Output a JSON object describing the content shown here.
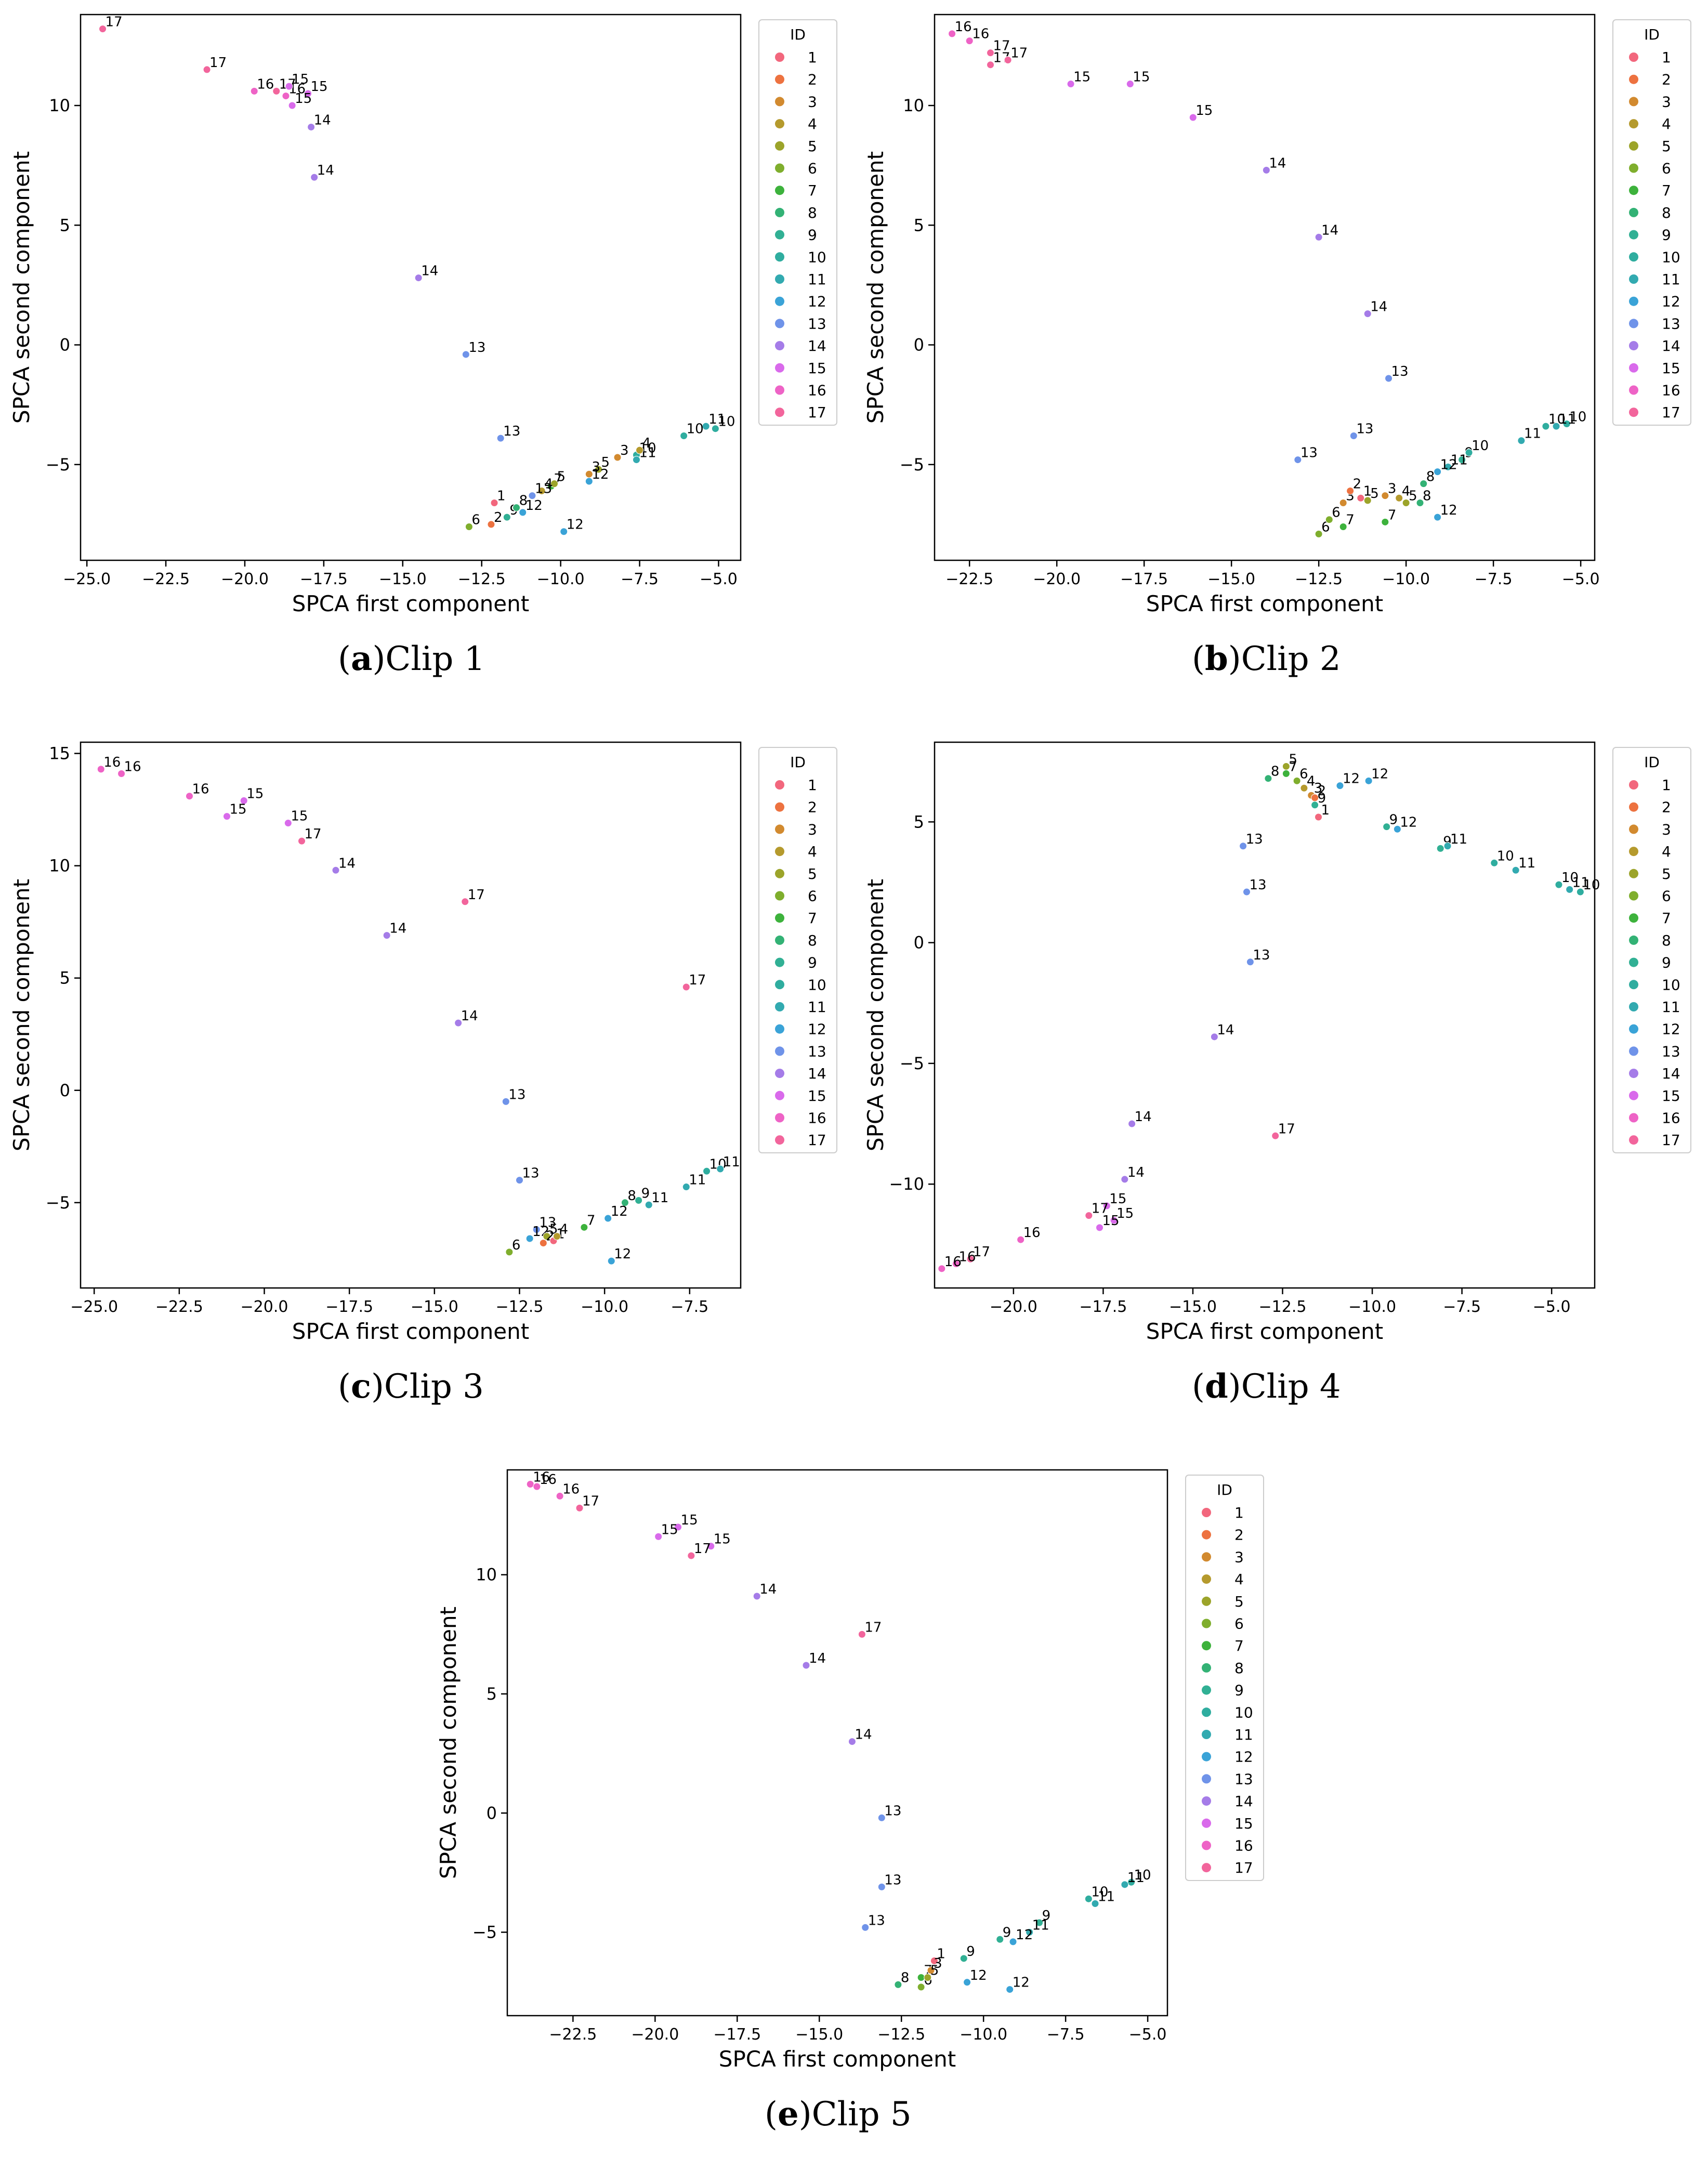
{
  "chart_data": [
    {
      "type": "scatter",
      "caption_letter": "a",
      "caption_text": "Clip 1",
      "xlabel": "SPCA first component",
      "ylabel": "SPCA second component",
      "xlim": [
        -25.2,
        -4.3
      ],
      "ylim": [
        -9.0,
        13.8
      ],
      "xticks": [
        -25.0,
        -22.5,
        -20.0,
        -17.5,
        -15.0,
        -12.5,
        -10.0,
        -7.5,
        -5.0
      ],
      "yticks": [
        -5,
        0,
        5,
        10
      ],
      "legend_title": "ID",
      "legend_ids": [
        1,
        2,
        3,
        4,
        5,
        6,
        7,
        8,
        9,
        10,
        11,
        12,
        13,
        14,
        15,
        16,
        17
      ],
      "points": [
        {
          "id": 17,
          "x": -24.5,
          "y": 13.2
        },
        {
          "id": 17,
          "x": -21.2,
          "y": 11.5
        },
        {
          "id": 17,
          "x": -19.0,
          "y": 10.6
        },
        {
          "id": 16,
          "x": -19.7,
          "y": 10.6
        },
        {
          "id": 16,
          "x": -18.7,
          "y": 10.4
        },
        {
          "id": 15,
          "x": -18.6,
          "y": 10.8
        },
        {
          "id": 15,
          "x": -18.0,
          "y": 10.5
        },
        {
          "id": 15,
          "x": -18.5,
          "y": 10.0
        },
        {
          "id": 14,
          "x": -17.9,
          "y": 9.1
        },
        {
          "id": 14,
          "x": -17.8,
          "y": 7.0
        },
        {
          "id": 14,
          "x": -14.5,
          "y": 2.8
        },
        {
          "id": 13,
          "x": -13.0,
          "y": -0.4
        },
        {
          "id": 13,
          "x": -11.9,
          "y": -3.9
        },
        {
          "id": 11,
          "x": -5.4,
          "y": -3.4
        },
        {
          "id": 10,
          "x": -5.1,
          "y": -3.5
        },
        {
          "id": 10,
          "x": -6.1,
          "y": -3.8
        },
        {
          "id": 10,
          "x": -7.6,
          "y": -4.6
        },
        {
          "id": 11,
          "x": -7.6,
          "y": -4.8
        },
        {
          "id": 4,
          "x": -7.5,
          "y": -4.4
        },
        {
          "id": 3,
          "x": -8.2,
          "y": -4.7
        },
        {
          "id": 5,
          "x": -8.8,
          "y": -5.2
        },
        {
          "id": 3,
          "x": -9.1,
          "y": -5.4
        },
        {
          "id": 12,
          "x": -9.1,
          "y": -5.7
        },
        {
          "id": 7,
          "x": -10.3,
          "y": -5.9
        },
        {
          "id": 5,
          "x": -10.2,
          "y": -5.8
        },
        {
          "id": 4,
          "x": -10.6,
          "y": -6.1
        },
        {
          "id": 13,
          "x": -10.9,
          "y": -6.3
        },
        {
          "id": 12,
          "x": -11.2,
          "y": -7.0
        },
        {
          "id": 12,
          "x": -9.9,
          "y": -7.8
        },
        {
          "id": 1,
          "x": -12.1,
          "y": -6.6
        },
        {
          "id": 2,
          "x": -12.2,
          "y": -7.5
        },
        {
          "id": 6,
          "x": -12.9,
          "y": -7.6
        },
        {
          "id": 9,
          "x": -11.7,
          "y": -7.2
        },
        {
          "id": 8,
          "x": -11.4,
          "y": -6.8
        }
      ]
    },
    {
      "type": "scatter",
      "caption_letter": "b",
      "caption_text": "Clip 2",
      "xlabel": "SPCA first component",
      "ylabel": "SPCA second component",
      "xlim": [
        -23.5,
        -4.6
      ],
      "ylim": [
        -9.0,
        13.8
      ],
      "xticks": [
        -22.5,
        -20.0,
        -17.5,
        -15.0,
        -12.5,
        -10.0,
        -7.5,
        -5.0
      ],
      "yticks": [
        -5,
        0,
        5,
        10
      ],
      "legend_title": "ID",
      "legend_ids": [
        1,
        2,
        3,
        4,
        5,
        6,
        7,
        8,
        9,
        10,
        11,
        12,
        13,
        14,
        15,
        16,
        17
      ],
      "points": [
        {
          "id": 16,
          "x": -23.0,
          "y": 13.0
        },
        {
          "id": 16,
          "x": -22.5,
          "y": 12.7
        },
        {
          "id": 17,
          "x": -21.9,
          "y": 12.2
        },
        {
          "id": 17,
          "x": -21.9,
          "y": 11.7
        },
        {
          "id": 17,
          "x": -21.4,
          "y": 11.9
        },
        {
          "id": 15,
          "x": -19.6,
          "y": 10.9
        },
        {
          "id": 15,
          "x": -17.9,
          "y": 10.9
        },
        {
          "id": 15,
          "x": -16.1,
          "y": 9.5
        },
        {
          "id": 14,
          "x": -14.0,
          "y": 7.3
        },
        {
          "id": 14,
          "x": -12.5,
          "y": 4.5
        },
        {
          "id": 14,
          "x": -11.1,
          "y": 1.3
        },
        {
          "id": 13,
          "x": -10.5,
          "y": -1.4
        },
        {
          "id": 13,
          "x": -11.5,
          "y": -3.8
        },
        {
          "id": 13,
          "x": -13.1,
          "y": -4.8
        },
        {
          "id": 11,
          "x": -6.7,
          "y": -4.0
        },
        {
          "id": 10,
          "x": -6.0,
          "y": -3.4
        },
        {
          "id": 10,
          "x": -5.4,
          "y": -3.3
        },
        {
          "id": 11,
          "x": -5.7,
          "y": -3.4
        },
        {
          "id": 9,
          "x": -8.4,
          "y": -4.8
        },
        {
          "id": 10,
          "x": -8.2,
          "y": -4.5
        },
        {
          "id": 11,
          "x": -8.8,
          "y": -5.1
        },
        {
          "id": 12,
          "x": -9.1,
          "y": -5.3
        },
        {
          "id": 8,
          "x": -9.5,
          "y": -5.8
        },
        {
          "id": 8,
          "x": -9.6,
          "y": -6.6
        },
        {
          "id": 12,
          "x": -9.1,
          "y": -7.2
        },
        {
          "id": 7,
          "x": -10.6,
          "y": -7.4
        },
        {
          "id": 7,
          "x": -11.8,
          "y": -7.6
        },
        {
          "id": 6,
          "x": -12.5,
          "y": -7.9
        },
        {
          "id": 6,
          "x": -12.2,
          "y": -7.3
        },
        {
          "id": 3,
          "x": -11.8,
          "y": -6.6
        },
        {
          "id": 2,
          "x": -11.6,
          "y": -6.1
        },
        {
          "id": 1,
          "x": -11.3,
          "y": -6.4
        },
        {
          "id": 5,
          "x": -11.1,
          "y": -6.5
        },
        {
          "id": 3,
          "x": -10.6,
          "y": -6.3
        },
        {
          "id": 4,
          "x": -10.2,
          "y": -6.4
        },
        {
          "id": 5,
          "x": -10.0,
          "y": -6.6
        }
      ]
    },
    {
      "type": "scatter",
      "caption_letter": "c",
      "caption_text": "Clip 3",
      "xlabel": "SPCA first component",
      "ylabel": "SPCA second component",
      "xlim": [
        -25.4,
        -6.0
      ],
      "ylim": [
        -8.8,
        15.5
      ],
      "xticks": [
        -25.0,
        -22.5,
        -20.0,
        -17.5,
        -15.0,
        -12.5,
        -10.0,
        -7.5
      ],
      "yticks": [
        -5,
        0,
        5,
        10,
        15
      ],
      "legend_title": "ID",
      "legend_ids": [
        1,
        2,
        3,
        4,
        5,
        6,
        7,
        8,
        9,
        10,
        11,
        12,
        13,
        14,
        15,
        16,
        17
      ],
      "points": [
        {
          "id": 16,
          "x": -24.8,
          "y": 14.3
        },
        {
          "id": 16,
          "x": -24.2,
          "y": 14.1
        },
        {
          "id": 16,
          "x": -22.2,
          "y": 13.1
        },
        {
          "id": 15,
          "x": -20.6,
          "y": 12.9
        },
        {
          "id": 15,
          "x": -21.1,
          "y": 12.2
        },
        {
          "id": 15,
          "x": -19.3,
          "y": 11.9
        },
        {
          "id": 17,
          "x": -18.9,
          "y": 11.1
        },
        {
          "id": 14,
          "x": -17.9,
          "y": 9.8
        },
        {
          "id": 17,
          "x": -14.1,
          "y": 8.4
        },
        {
          "id": 14,
          "x": -16.4,
          "y": 6.9
        },
        {
          "id": 17,
          "x": -7.6,
          "y": 4.6
        },
        {
          "id": 14,
          "x": -14.3,
          "y": 3.0
        },
        {
          "id": 13,
          "x": -12.9,
          "y": -0.5
        },
        {
          "id": 13,
          "x": -12.5,
          "y": -4.0
        },
        {
          "id": 10,
          "x": -7.0,
          "y": -3.6
        },
        {
          "id": 11,
          "x": -6.6,
          "y": -3.5
        },
        {
          "id": 11,
          "x": -7.6,
          "y": -4.3
        },
        {
          "id": 9,
          "x": -9.0,
          "y": -4.9
        },
        {
          "id": 11,
          "x": -8.7,
          "y": -5.1
        },
        {
          "id": 8,
          "x": -9.4,
          "y": -5.0
        },
        {
          "id": 12,
          "x": -9.9,
          "y": -5.7
        },
        {
          "id": 12,
          "x": -9.8,
          "y": -7.6
        },
        {
          "id": 7,
          "x": -10.6,
          "y": -6.1
        },
        {
          "id": 13,
          "x": -12.0,
          "y": -6.2
        },
        {
          "id": 12,
          "x": -12.2,
          "y": -6.6
        },
        {
          "id": 6,
          "x": -12.8,
          "y": -7.2
        },
        {
          "id": 5,
          "x": -11.7,
          "y": -6.5
        },
        {
          "id": 2,
          "x": -11.8,
          "y": -6.8
        },
        {
          "id": 1,
          "x": -11.5,
          "y": -6.7
        },
        {
          "id": 4,
          "x": -11.4,
          "y": -6.5
        }
      ]
    },
    {
      "type": "scatter",
      "caption_letter": "d",
      "caption_text": "Clip 4",
      "xlabel": "SPCA first component",
      "ylabel": "SPCA second component",
      "xlim": [
        -22.2,
        -3.8
      ],
      "ylim": [
        -14.3,
        8.3
      ],
      "xticks": [
        -22.5,
        -20.0,
        -17.5,
        -15.0,
        -12.5,
        -10.0,
        -7.5,
        -5.0
      ],
      "yticks": [
        -10,
        -5,
        0,
        5
      ],
      "legend_title": "ID",
      "legend_ids": [
        1,
        2,
        3,
        4,
        5,
        6,
        7,
        8,
        9,
        10,
        11,
        12,
        13,
        14,
        15,
        16,
        17
      ],
      "points": [
        {
          "id": 5,
          "x": -12.4,
          "y": 7.3
        },
        {
          "id": 7,
          "x": -12.4,
          "y": 7.0
        },
        {
          "id": 8,
          "x": -12.9,
          "y": 6.8
        },
        {
          "id": 6,
          "x": -12.1,
          "y": 6.7
        },
        {
          "id": 4,
          "x": -11.9,
          "y": 6.4
        },
        {
          "id": 3,
          "x": -11.7,
          "y": 6.1
        },
        {
          "id": 2,
          "x": -11.6,
          "y": 6.0
        },
        {
          "id": 1,
          "x": -11.5,
          "y": 5.2
        },
        {
          "id": 9,
          "x": -11.6,
          "y": 5.7
        },
        {
          "id": 12,
          "x": -10.1,
          "y": 6.7
        },
        {
          "id": 12,
          "x": -10.9,
          "y": 6.5
        },
        {
          "id": 9,
          "x": -9.6,
          "y": 4.8
        },
        {
          "id": 12,
          "x": -9.3,
          "y": 4.7
        },
        {
          "id": 9,
          "x": -8.1,
          "y": 3.9
        },
        {
          "id": 11,
          "x": -7.9,
          "y": 4.0
        },
        {
          "id": 10,
          "x": -6.6,
          "y": 3.3
        },
        {
          "id": 11,
          "x": -6.0,
          "y": 3.0
        },
        {
          "id": 10,
          "x": -4.8,
          "y": 2.4
        },
        {
          "id": 11,
          "x": -4.5,
          "y": 2.2
        },
        {
          "id": 10,
          "x": -4.2,
          "y": 2.1
        },
        {
          "id": 13,
          "x": -13.6,
          "y": 4.0
        },
        {
          "id": 13,
          "x": -13.5,
          "y": 2.1
        },
        {
          "id": 13,
          "x": -13.4,
          "y": -0.8
        },
        {
          "id": 14,
          "x": -14.4,
          "y": -3.9
        },
        {
          "id": 14,
          "x": -16.7,
          "y": -7.5
        },
        {
          "id": 17,
          "x": -12.7,
          "y": -8.0
        },
        {
          "id": 14,
          "x": -16.9,
          "y": -9.8
        },
        {
          "id": 15,
          "x": -17.4,
          "y": -10.9
        },
        {
          "id": 17,
          "x": -17.9,
          "y": -11.3
        },
        {
          "id": 15,
          "x": -17.2,
          "y": -11.5
        },
        {
          "id": 15,
          "x": -17.6,
          "y": -11.8
        },
        {
          "id": 16,
          "x": -19.8,
          "y": -12.3
        },
        {
          "id": 17,
          "x": -21.2,
          "y": -13.1
        },
        {
          "id": 16,
          "x": -21.6,
          "y": -13.3
        },
        {
          "id": 16,
          "x": -22.0,
          "y": -13.5
        }
      ]
    },
    {
      "type": "scatter",
      "caption_letter": "e",
      "caption_text": "Clip 5",
      "xlabel": "SPCA first component",
      "ylabel": "SPCA second component",
      "xlim": [
        -24.5,
        -4.4
      ],
      "ylim": [
        -8.5,
        14.4
      ],
      "xticks": [
        -22.5,
        -20.0,
        -17.5,
        -15.0,
        -12.5,
        -10.0,
        -7.5,
        -5.0
      ],
      "yticks": [
        -5,
        0,
        5,
        10
      ],
      "legend_title": "ID",
      "legend_ids": [
        1,
        2,
        3,
        4,
        5,
        6,
        7,
        8,
        9,
        10,
        11,
        12,
        13,
        14,
        15,
        16,
        17
      ],
      "points": [
        {
          "id": 16,
          "x": -23.8,
          "y": 13.8
        },
        {
          "id": 16,
          "x": -23.6,
          "y": 13.7
        },
        {
          "id": 16,
          "x": -22.9,
          "y": 13.3
        },
        {
          "id": 17,
          "x": -22.3,
          "y": 12.8
        },
        {
          "id": 15,
          "x": -19.3,
          "y": 12.0
        },
        {
          "id": 15,
          "x": -19.9,
          "y": 11.6
        },
        {
          "id": 15,
          "x": -18.3,
          "y": 11.2
        },
        {
          "id": 17,
          "x": -18.9,
          "y": 10.8
        },
        {
          "id": 14,
          "x": -16.9,
          "y": 9.1
        },
        {
          "id": 17,
          "x": -13.7,
          "y": 7.5
        },
        {
          "id": 14,
          "x": -15.4,
          "y": 6.2
        },
        {
          "id": 14,
          "x": -14.0,
          "y": 3.0
        },
        {
          "id": 13,
          "x": -13.1,
          "y": -0.2
        },
        {
          "id": 13,
          "x": -13.1,
          "y": -3.1
        },
        {
          "id": 13,
          "x": -13.6,
          "y": -4.8
        },
        {
          "id": 10,
          "x": -5.5,
          "y": -2.9
        },
        {
          "id": 11,
          "x": -5.7,
          "y": -3.0
        },
        {
          "id": 10,
          "x": -6.8,
          "y": -3.6
        },
        {
          "id": 11,
          "x": -6.6,
          "y": -3.8
        },
        {
          "id": 9,
          "x": -8.3,
          "y": -4.6
        },
        {
          "id": 11,
          "x": -8.6,
          "y": -5.0
        },
        {
          "id": 12,
          "x": -9.1,
          "y": -5.4
        },
        {
          "id": 9,
          "x": -9.5,
          "y": -5.3
        },
        {
          "id": 9,
          "x": -10.6,
          "y": -6.1
        },
        {
          "id": 12,
          "x": -10.5,
          "y": -7.1
        },
        {
          "id": 12,
          "x": -9.2,
          "y": -7.4
        },
        {
          "id": 8,
          "x": -12.6,
          "y": -7.2
        },
        {
          "id": 7,
          "x": -11.9,
          "y": -6.9
        },
        {
          "id": 6,
          "x": -11.9,
          "y": -7.3
        },
        {
          "id": 1,
          "x": -11.5,
          "y": -6.2
        },
        {
          "id": 3,
          "x": -11.6,
          "y": -6.6
        },
        {
          "id": 5,
          "x": -11.7,
          "y": -6.9
        }
      ]
    }
  ]
}
